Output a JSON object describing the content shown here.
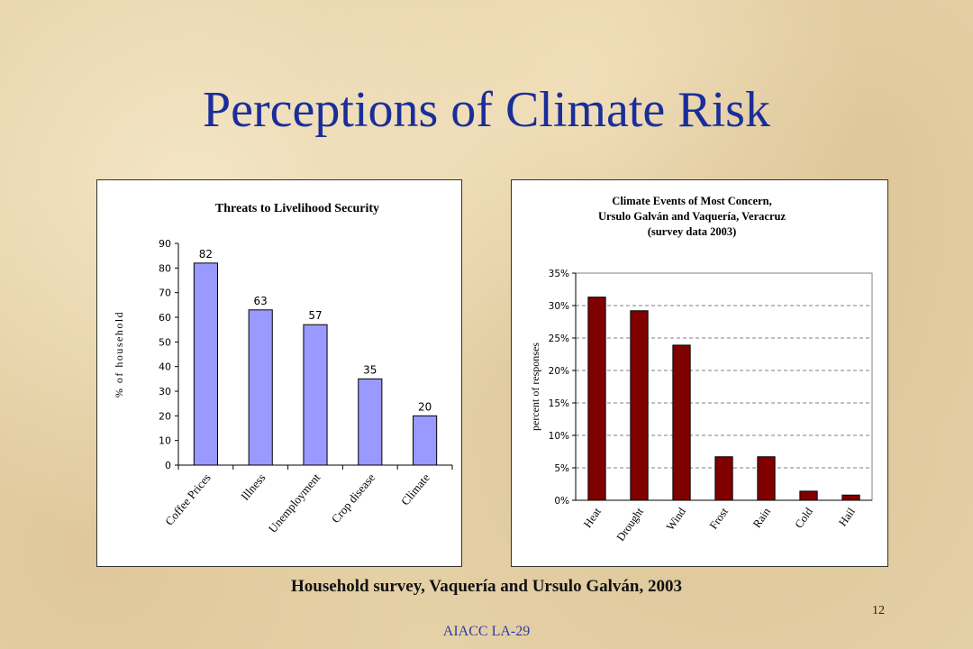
{
  "slide": {
    "title": "Perceptions of Climate Risk",
    "caption": "Household survey, Vaquería and Ursulo Galván, 2003",
    "page_number": "12",
    "footer": "AIACC LA-29"
  },
  "colors": {
    "title": "#1a2e9a",
    "left_bar": "#9999ff",
    "right_bar": "#800000",
    "footer": "#2a3da8"
  },
  "chart_data": [
    {
      "type": "bar",
      "title": "Threats to Livelihood Security",
      "ylabel": "% of household",
      "xlabel": "",
      "categories": [
        "Coffee Prices",
        "Illness",
        "Unemployment",
        "Crop disease",
        "Climate"
      ],
      "values": [
        82,
        63,
        57,
        35,
        20
      ],
      "data_labels": [
        "82",
        "63",
        "57",
        "35",
        "20"
      ],
      "ylim": [
        0,
        90
      ],
      "yticks": [
        0,
        10,
        20,
        30,
        40,
        50,
        60,
        70,
        80,
        90
      ],
      "ytick_labels": [
        "0",
        "10",
        "20",
        "30",
        "40",
        "50",
        "60",
        "70",
        "80",
        "90"
      ],
      "grid": false,
      "legend": "none"
    },
    {
      "type": "bar",
      "title": "Climate Events of Most Concern,\nUrsulo Galván and Vaquería, Veracruz\n(survey data 2003)",
      "title_lines": [
        "Climate Events of Most Concern,",
        "Ursulo Galván and Vaquería, Veracruz",
        "(survey data 2003)"
      ],
      "ylabel": "percent of responses",
      "xlabel": "",
      "categories": [
        "Heat",
        "Drought",
        "Wind",
        "Frost",
        "Rain",
        "Cold",
        "Hail"
      ],
      "values": [
        31.3,
        29.2,
        23.9,
        6.7,
        6.7,
        1.4,
        0.8
      ],
      "ylim": [
        0,
        35
      ],
      "yticks": [
        0,
        5,
        10,
        15,
        20,
        25,
        30,
        35
      ],
      "ytick_labels": [
        "0%",
        "5%",
        "10%",
        "15%",
        "20%",
        "25%",
        "30%",
        "35%"
      ],
      "grid": true,
      "legend": "none"
    }
  ]
}
